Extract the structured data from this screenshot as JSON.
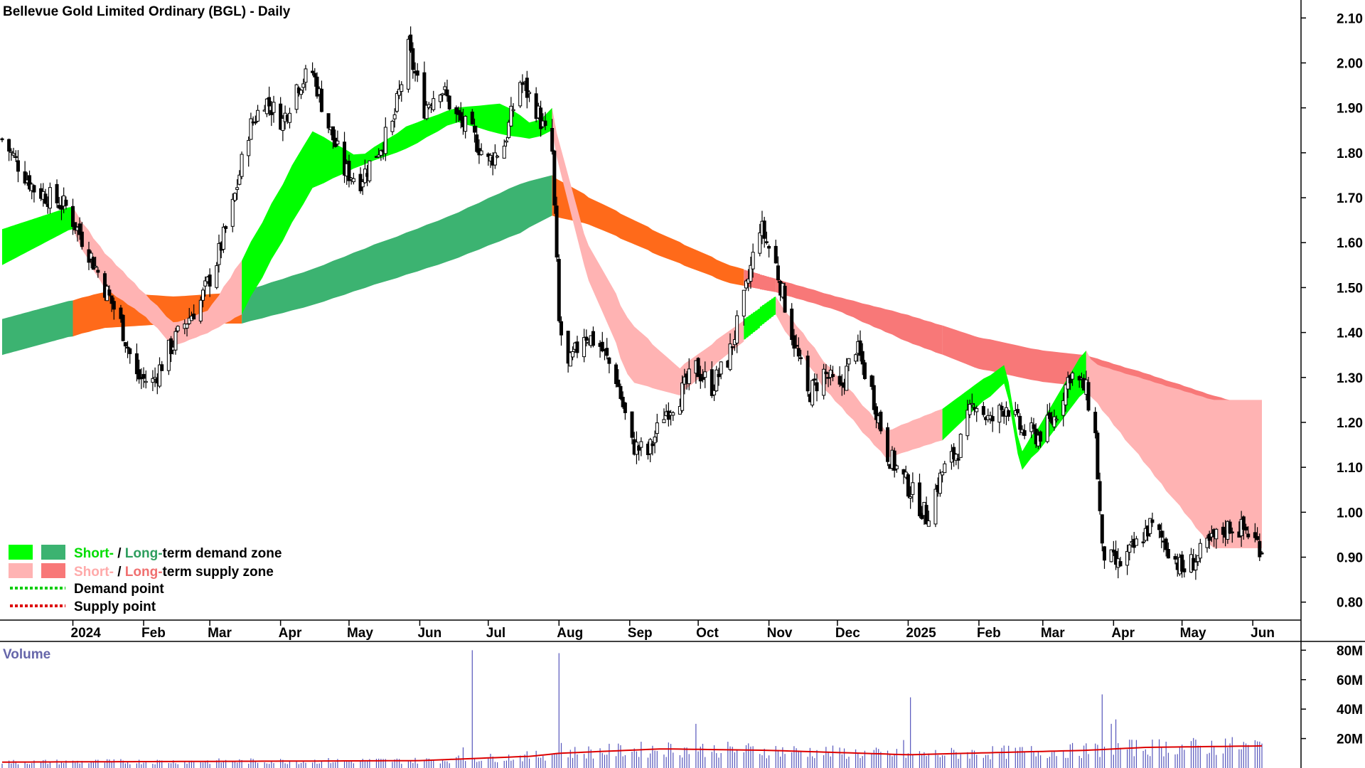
{
  "title": "Bellevue Gold Limited Ordinary (BGL) - Daily",
  "colors": {
    "short_demand": "#00ff00",
    "long_demand": "#3cb371",
    "short_supply": "#ffb3b3",
    "long_supply": "#f87878",
    "transition": "#ff6a1a",
    "volume_bar": "#5555bb",
    "volume_ma": "#dd0000",
    "demand_point": "#00cc00",
    "supply_point": "#dd0000"
  },
  "legend": {
    "row1": {
      "short": "Short-",
      "sep": " / ",
      "long": "Long-",
      "rest": "term demand zone"
    },
    "row2": {
      "short": "Short-",
      "sep": " / ",
      "long": "Long-",
      "rest": "term supply zone"
    },
    "demand_point": "Demand point",
    "supply_point": "Supply point"
  },
  "volume_label": "Volume",
  "chart_data": [
    {
      "type": "candlestick",
      "title": "Bellevue Gold Limited Ordinary (BGL) - Daily",
      "x_ticks": [
        "2024",
        "Feb",
        "Mar",
        "Apr",
        "May",
        "Jun",
        "Jul",
        "Aug",
        "Sep",
        "Oct",
        "Nov",
        "Dec",
        "2025",
        "Feb",
        "Mar",
        "Apr",
        "May",
        "Jun"
      ],
      "y_ticks": [
        "2.10",
        "2.00",
        "1.90",
        "1.80",
        "1.70",
        "1.60",
        "1.50",
        "1.40",
        "1.30",
        "1.20",
        "1.10",
        "1.00",
        "0.90",
        "0.80"
      ],
      "ylim": [
        0.76,
        2.14
      ],
      "grid": false,
      "close_path": [
        [
          "2023-12-01",
          1.83
        ],
        [
          "2023-12-15",
          1.72
        ],
        [
          "2023-12-29",
          1.68
        ],
        [
          "2024-01-08",
          1.58
        ],
        [
          "2024-01-15",
          1.5
        ],
        [
          "2024-01-22",
          1.42
        ],
        [
          "2024-01-29",
          1.3
        ],
        [
          "2024-02-05",
          1.29
        ],
        [
          "2024-02-12",
          1.36
        ],
        [
          "2024-02-19",
          1.42
        ],
        [
          "2024-02-26",
          1.47
        ],
        [
          "2024-03-04",
          1.56
        ],
        [
          "2024-03-11",
          1.68
        ],
        [
          "2024-03-18",
          1.85
        ],
        [
          "2024-03-25",
          1.92
        ],
        [
          "2024-04-02",
          1.87
        ],
        [
          "2024-04-08",
          1.95
        ],
        [
          "2024-04-15",
          1.98
        ],
        [
          "2024-04-22",
          1.86
        ],
        [
          "2024-04-29",
          1.76
        ],
        [
          "2024-05-06",
          1.74
        ],
        [
          "2024-05-13",
          1.8
        ],
        [
          "2024-05-20",
          1.86
        ],
        [
          "2024-05-27",
          2.03
        ],
        [
          "2024-06-03",
          1.9
        ],
        [
          "2024-06-10",
          1.95
        ],
        [
          "2024-06-17",
          1.88
        ],
        [
          "2024-06-24",
          1.84
        ],
        [
          "2024-07-01",
          1.78
        ],
        [
          "2024-07-08",
          1.82
        ],
        [
          "2024-07-15",
          1.96
        ],
        [
          "2024-07-22",
          1.9
        ],
        [
          "2024-07-29",
          1.8
        ],
        [
          "2024-08-01",
          1.42
        ],
        [
          "2024-08-05",
          1.32
        ],
        [
          "2024-08-12",
          1.4
        ],
        [
          "2024-08-19",
          1.37
        ],
        [
          "2024-08-26",
          1.3
        ],
        [
          "2024-09-02",
          1.15
        ],
        [
          "2024-09-09",
          1.13
        ],
        [
          "2024-09-16",
          1.22
        ],
        [
          "2024-09-23",
          1.26
        ],
        [
          "2024-09-30",
          1.32
        ],
        [
          "2024-10-07",
          1.28
        ],
        [
          "2024-10-14",
          1.34
        ],
        [
          "2024-10-21",
          1.47
        ],
        [
          "2024-10-28",
          1.64
        ],
        [
          "2024-11-04",
          1.55
        ],
        [
          "2024-11-11",
          1.4
        ],
        [
          "2024-11-18",
          1.26
        ],
        [
          "2024-11-25",
          1.31
        ],
        [
          "2024-12-02",
          1.27
        ],
        [
          "2024-12-09",
          1.37
        ],
        [
          "2024-12-16",
          1.27
        ],
        [
          "2024-12-23",
          1.13
        ],
        [
          "2025-01-02",
          1.05
        ],
        [
          "2025-01-09",
          0.99
        ],
        [
          "2025-01-16",
          1.09
        ],
        [
          "2025-01-23",
          1.14
        ],
        [
          "2025-01-30",
          1.25
        ],
        [
          "2025-02-06",
          1.2
        ],
        [
          "2025-02-13",
          1.24
        ],
        [
          "2025-02-20",
          1.18
        ],
        [
          "2025-02-27",
          1.17
        ],
        [
          "2025-03-06",
          1.21
        ],
        [
          "2025-03-13",
          1.31
        ],
        [
          "2025-03-20",
          1.27
        ],
        [
          "2025-03-24",
          1.17
        ],
        [
          "2025-03-27",
          0.91
        ],
        [
          "2025-04-03",
          0.88
        ],
        [
          "2025-04-10",
          0.92
        ],
        [
          "2025-04-17",
          0.97
        ],
        [
          "2025-04-24",
          0.93
        ],
        [
          "2025-05-01",
          0.87
        ],
        [
          "2025-05-08",
          0.9
        ],
        [
          "2025-05-15",
          0.94
        ],
        [
          "2025-05-22",
          0.97
        ],
        [
          "2025-05-29",
          0.96
        ],
        [
          "2025-06-05",
          0.92
        ]
      ],
      "short_term_zone": {
        "upper": [
          1.63,
          1.68,
          1.58,
          1.49,
          1.42,
          1.45,
          1.56,
          1.85,
          1.79,
          1.86,
          1.9,
          1.91,
          1.86,
          1.9,
          1.62,
          1.42,
          1.32,
          1.48,
          1.34,
          1.18,
          1.23,
          1.33,
          1.13,
          1.36,
          1.33,
          1.25
        ],
        "lower": [
          1.55,
          1.63,
          1.5,
          1.44,
          1.37,
          1.4,
          1.44,
          1.72,
          1.77,
          1.81,
          1.87,
          1.84,
          1.83,
          1.85,
          1.55,
          1.29,
          1.26,
          1.44,
          1.28,
          1.12,
          1.16,
          1.29,
          1.09,
          1.27,
          1.25,
          0.92
        ],
        "dates": [
          "2023-12-01",
          "2024-01-01",
          "2024-01-15",
          "2024-02-01",
          "2024-02-15",
          "2024-03-01",
          "2024-03-15",
          "2024-04-15",
          "2024-05-06",
          "2024-05-27",
          "2024-06-17",
          "2024-07-08",
          "2024-07-22",
          "2024-07-29",
          "2024-08-12",
          "2024-09-02",
          "2024-09-23",
          "2024-11-04",
          "2024-11-25",
          "2024-12-23",
          "2025-01-16",
          "2025-02-13",
          "2025-02-20",
          "2025-03-20",
          "2025-03-24",
          "2025-05-15"
        ]
      },
      "long_term_zone": {
        "dates": [
          "2023-12-01",
          "2024-01-15",
          "2024-02-15",
          "2024-03-15",
          "2024-04-15",
          "2024-05-15",
          "2024-06-15",
          "2024-07-15",
          "2024-07-29",
          "2024-08-15",
          "2024-09-15",
          "2024-10-15",
          "2024-11-04",
          "2024-12-01",
          "2025-01-01",
          "2025-02-01",
          "2025-03-01",
          "2025-03-20",
          "2025-04-15",
          "2025-05-15",
          "2025-06-05"
        ],
        "upper": [
          1.43,
          1.49,
          1.48,
          1.49,
          1.54,
          1.6,
          1.66,
          1.73,
          1.75,
          1.7,
          1.62,
          1.55,
          1.52,
          1.48,
          1.44,
          1.39,
          1.36,
          1.35,
          1.31,
          1.26,
          1.23
        ],
        "lower": [
          1.35,
          1.41,
          1.42,
          1.42,
          1.46,
          1.51,
          1.56,
          1.62,
          1.66,
          1.64,
          1.57,
          1.51,
          1.49,
          1.45,
          1.38,
          1.32,
          1.29,
          1.28,
          1.23,
          1.18,
          1.15
        ]
      },
      "zone_segments": [
        {
          "from": "2023-12-01",
          "to": "2024-01-01",
          "short": "demand",
          "long": "demand"
        },
        {
          "from": "2024-01-01",
          "to": "2024-03-15",
          "short": "supply",
          "long": "transition"
        },
        {
          "from": "2024-03-15",
          "to": "2024-07-29",
          "short": "demand",
          "long": "demand"
        },
        {
          "from": "2024-07-29",
          "to": "2024-10-21",
          "short": "supply",
          "long": "transition"
        },
        {
          "from": "2024-10-21",
          "to": "2024-11-04",
          "short": "demand",
          "long": "supply"
        },
        {
          "from": "2024-11-04",
          "to": "2025-01-16",
          "short": "supply",
          "long": "supply"
        },
        {
          "from": "2025-01-16",
          "to": "2025-03-20",
          "short": "demand",
          "long": "supply"
        },
        {
          "from": "2025-03-20",
          "to": "2025-06-05",
          "short": "supply",
          "long": "supply"
        }
      ],
      "legend": [
        "Short- / Long-term demand zone",
        "Short- / Long-term supply zone",
        "Demand point",
        "Supply point"
      ],
      "legend_position": "bottom-left"
    },
    {
      "type": "bar",
      "title": "Volume",
      "y_ticks": [
        "80M",
        "60M",
        "40M",
        "20M"
      ],
      "ylim": [
        0,
        85
      ],
      "unit": "M",
      "baseline_volume": 5,
      "moving_average": [
        [
          "2023-12-01",
          4
        ],
        [
          "2024-06-01",
          5
        ],
        [
          "2024-07-20",
          8
        ],
        [
          "2024-08-01",
          10
        ],
        [
          "2024-09-15",
          13
        ],
        [
          "2024-11-01",
          12
        ],
        [
          "2025-01-01",
          9
        ],
        [
          "2025-03-20",
          12
        ],
        [
          "2025-04-15",
          14
        ],
        [
          "2025-06-05",
          15
        ]
      ],
      "spikes": [
        [
          "2024-06-24",
          80
        ],
        [
          "2024-06-20",
          14
        ],
        [
          "2024-08-01",
          78
        ],
        [
          "2024-08-02",
          17
        ],
        [
          "2024-09-30",
          30
        ],
        [
          "2024-10-07",
          11
        ],
        [
          "2024-12-30",
          19
        ],
        [
          "2025-01-02",
          48
        ],
        [
          "2025-03-27",
          50
        ],
        [
          "2025-03-31",
          30
        ],
        [
          "2025-04-02",
          33
        ],
        [
          "2025-05-20",
          20
        ]
      ]
    }
  ]
}
